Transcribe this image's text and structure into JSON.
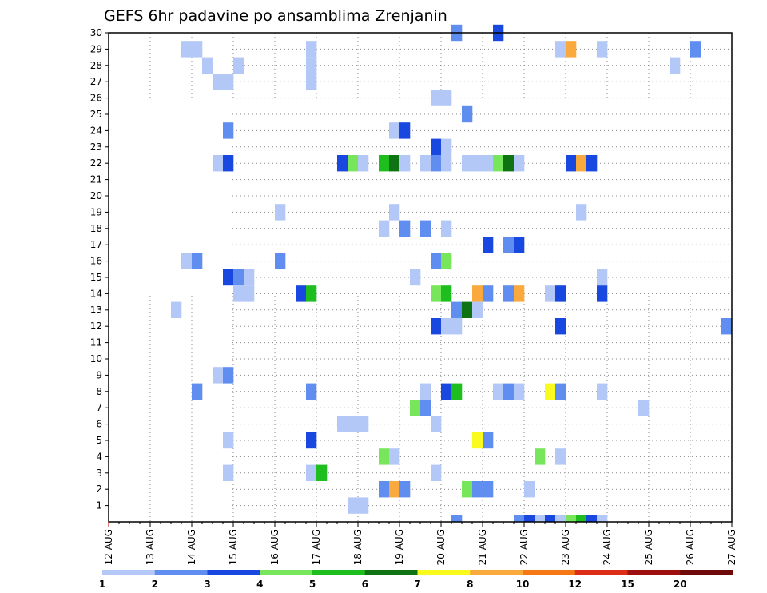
{
  "chart_data": {
    "type": "heatmap",
    "title": "GEFS 6hr padavine po ansamblima Zrenjanin",
    "x_tick_labels": [
      "12 AUG",
      "13 AUG",
      "14 AUG",
      "15 AUG",
      "16 AUG",
      "17 AUG",
      "18 AUG",
      "19 AUG",
      "20 AUG",
      "21 AUG",
      "22 AUG",
      "23 AUG",
      "24 AUG",
      "25 AUG",
      "26 AUG",
      "27 AUG"
    ],
    "y_tick_labels": [
      "1",
      "2",
      "3",
      "4",
      "5",
      "6",
      "7",
      "8",
      "9",
      "10",
      "11",
      "12",
      "13",
      "14",
      "15",
      "16",
      "17",
      "18",
      "19",
      "20",
      "21",
      "22",
      "23",
      "24",
      "25",
      "26",
      "27",
      "28",
      "29",
      "30"
    ],
    "xlim": [
      0,
      60
    ],
    "ylim": [
      0,
      30
    ],
    "x_unit": "6-hour step from 12 AUG",
    "grid": true,
    "colorbar": {
      "labels": [
        "1",
        "2",
        "3",
        "4",
        "5",
        "6",
        "7",
        "8",
        "10",
        "12",
        "15",
        "20"
      ],
      "colors": [
        "#b4c8f8",
        "#5f8ef0",
        "#1948e0",
        "#78e65a",
        "#1ebe1e",
        "#0f7314",
        "#fafa1e",
        "#faaa3c",
        "#f57814",
        "#dc2d19",
        "#a00f0f",
        "#6e0a0a"
      ]
    },
    "cells": [
      {
        "x": 33,
        "y": 30,
        "c": 2
      },
      {
        "x": 37,
        "y": 30,
        "c": 3
      },
      {
        "x": 7,
        "y": 29,
        "c": 1
      },
      {
        "x": 8,
        "y": 29,
        "c": 1
      },
      {
        "x": 19,
        "y": 29,
        "c": 1
      },
      {
        "x": 43,
        "y": 29,
        "c": 1
      },
      {
        "x": 44,
        "y": 29,
        "c": 8
      },
      {
        "x": 47,
        "y": 29,
        "c": 1
      },
      {
        "x": 56,
        "y": 29,
        "c": 2
      },
      {
        "x": 9,
        "y": 28,
        "c": 1
      },
      {
        "x": 12,
        "y": 28,
        "c": 1
      },
      {
        "x": 19,
        "y": 28,
        "c": 1
      },
      {
        "x": 54,
        "y": 28,
        "c": 1
      },
      {
        "x": 10,
        "y": 27,
        "c": 1
      },
      {
        "x": 11,
        "y": 27,
        "c": 1
      },
      {
        "x": 19,
        "y": 27,
        "c": 1
      },
      {
        "x": 31,
        "y": 26,
        "c": 1
      },
      {
        "x": 32,
        "y": 26,
        "c": 1
      },
      {
        "x": 34,
        "y": 25,
        "c": 2
      },
      {
        "x": 11,
        "y": 24,
        "c": 2
      },
      {
        "x": 27,
        "y": 24,
        "c": 1
      },
      {
        "x": 28,
        "y": 24,
        "c": 3
      },
      {
        "x": 31,
        "y": 23,
        "c": 3
      },
      {
        "x": 32,
        "y": 23,
        "c": 1
      },
      {
        "x": 10,
        "y": 22,
        "c": 1
      },
      {
        "x": 11,
        "y": 22,
        "c": 3
      },
      {
        "x": 22,
        "y": 22,
        "c": 3
      },
      {
        "x": 23,
        "y": 22,
        "c": 4
      },
      {
        "x": 24,
        "y": 22,
        "c": 1
      },
      {
        "x": 26,
        "y": 22,
        "c": 5
      },
      {
        "x": 27,
        "y": 22,
        "c": 6
      },
      {
        "x": 28,
        "y": 22,
        "c": 1
      },
      {
        "x": 30,
        "y": 22,
        "c": 1
      },
      {
        "x": 31,
        "y": 22,
        "c": 2
      },
      {
        "x": 32,
        "y": 22,
        "c": 1
      },
      {
        "x": 34,
        "y": 22,
        "c": 1
      },
      {
        "x": 35,
        "y": 22,
        "c": 1
      },
      {
        "x": 36,
        "y": 22,
        "c": 1
      },
      {
        "x": 37,
        "y": 22,
        "c": 4
      },
      {
        "x": 38,
        "y": 22,
        "c": 6
      },
      {
        "x": 39,
        "y": 22,
        "c": 1
      },
      {
        "x": 44,
        "y": 22,
        "c": 3
      },
      {
        "x": 45,
        "y": 22,
        "c": 8
      },
      {
        "x": 46,
        "y": 22,
        "c": 3
      },
      {
        "x": 16,
        "y": 19,
        "c": 1
      },
      {
        "x": 27,
        "y": 19,
        "c": 1
      },
      {
        "x": 45,
        "y": 19,
        "c": 1
      },
      {
        "x": 26,
        "y": 18,
        "c": 1
      },
      {
        "x": 28,
        "y": 18,
        "c": 2
      },
      {
        "x": 30,
        "y": 18,
        "c": 2
      },
      {
        "x": 32,
        "y": 18,
        "c": 1
      },
      {
        "x": 36,
        "y": 17,
        "c": 3
      },
      {
        "x": 38,
        "y": 17,
        "c": 2
      },
      {
        "x": 39,
        "y": 17,
        "c": 3
      },
      {
        "x": 7,
        "y": 16,
        "c": 1
      },
      {
        "x": 8,
        "y": 16,
        "c": 2
      },
      {
        "x": 16,
        "y": 16,
        "c": 2
      },
      {
        "x": 31,
        "y": 16,
        "c": 2
      },
      {
        "x": 32,
        "y": 16,
        "c": 4
      },
      {
        "x": 47,
        "y": 15,
        "c": 1
      },
      {
        "x": 11,
        "y": 15,
        "c": 3
      },
      {
        "x": 12,
        "y": 15,
        "c": 2
      },
      {
        "x": 13,
        "y": 15,
        "c": 1
      },
      {
        "x": 29,
        "y": 15,
        "c": 1
      },
      {
        "x": 12,
        "y": 14,
        "c": 1
      },
      {
        "x": 13,
        "y": 14,
        "c": 1
      },
      {
        "x": 18,
        "y": 14,
        "c": 3
      },
      {
        "x": 19,
        "y": 14,
        "c": 5
      },
      {
        "x": 31,
        "y": 14,
        "c": 4
      },
      {
        "x": 32,
        "y": 14,
        "c": 5
      },
      {
        "x": 35,
        "y": 14,
        "c": 8
      },
      {
        "x": 36,
        "y": 14,
        "c": 2
      },
      {
        "x": 38,
        "y": 14,
        "c": 2
      },
      {
        "x": 39,
        "y": 14,
        "c": 8
      },
      {
        "x": 42,
        "y": 14,
        "c": 1
      },
      {
        "x": 43,
        "y": 14,
        "c": 3
      },
      {
        "x": 47,
        "y": 14,
        "c": 3
      },
      {
        "x": 6,
        "y": 13,
        "c": 1
      },
      {
        "x": 33,
        "y": 13,
        "c": 2
      },
      {
        "x": 34,
        "y": 13,
        "c": 6
      },
      {
        "x": 35,
        "y": 13,
        "c": 1
      },
      {
        "x": 31,
        "y": 12,
        "c": 3
      },
      {
        "x": 32,
        "y": 12,
        "c": 1
      },
      {
        "x": 33,
        "y": 12,
        "c": 1
      },
      {
        "x": 43,
        "y": 12,
        "c": 3
      },
      {
        "x": 59,
        "y": 12,
        "c": 2
      },
      {
        "x": 10,
        "y": 9,
        "c": 1
      },
      {
        "x": 11,
        "y": 9,
        "c": 2
      },
      {
        "x": 8,
        "y": 8,
        "c": 2
      },
      {
        "x": 19,
        "y": 8,
        "c": 2
      },
      {
        "x": 30,
        "y": 8,
        "c": 1
      },
      {
        "x": 32,
        "y": 8,
        "c": 3
      },
      {
        "x": 33,
        "y": 8,
        "c": 5
      },
      {
        "x": 37,
        "y": 8,
        "c": 1
      },
      {
        "x": 38,
        "y": 8,
        "c": 2
      },
      {
        "x": 39,
        "y": 8,
        "c": 1
      },
      {
        "x": 42,
        "y": 8,
        "c": 7
      },
      {
        "x": 43,
        "y": 8,
        "c": 2
      },
      {
        "x": 47,
        "y": 8,
        "c": 1
      },
      {
        "x": 29,
        "y": 7,
        "c": 4
      },
      {
        "x": 30,
        "y": 7,
        "c": 2
      },
      {
        "x": 51,
        "y": 7,
        "c": 1
      },
      {
        "x": 22,
        "y": 6,
        "c": 1
      },
      {
        "x": 23,
        "y": 6,
        "c": 1
      },
      {
        "x": 24,
        "y": 6,
        "c": 1
      },
      {
        "x": 31,
        "y": 6,
        "c": 1
      },
      {
        "x": 11,
        "y": 5,
        "c": 1
      },
      {
        "x": 19,
        "y": 5,
        "c": 3
      },
      {
        "x": 35,
        "y": 5,
        "c": 7
      },
      {
        "x": 36,
        "y": 5,
        "c": 2
      },
      {
        "x": 26,
        "y": 4,
        "c": 4
      },
      {
        "x": 27,
        "y": 4,
        "c": 1
      },
      {
        "x": 41,
        "y": 4,
        "c": 4
      },
      {
        "x": 43,
        "y": 4,
        "c": 1
      },
      {
        "x": 11,
        "y": 3,
        "c": 1
      },
      {
        "x": 19,
        "y": 3,
        "c": 1
      },
      {
        "x": 20,
        "y": 3,
        "c": 5
      },
      {
        "x": 31,
        "y": 3,
        "c": 1
      },
      {
        "x": 26,
        "y": 2,
        "c": 2
      },
      {
        "x": 27,
        "y": 2,
        "c": 8
      },
      {
        "x": 28,
        "y": 2,
        "c": 2
      },
      {
        "x": 34,
        "y": 2,
        "c": 4
      },
      {
        "x": 35,
        "y": 2,
        "c": 2
      },
      {
        "x": 36,
        "y": 2,
        "c": 2
      },
      {
        "x": 40,
        "y": 2,
        "c": 1
      },
      {
        "x": 23,
        "y": 1,
        "c": 1
      },
      {
        "x": 24,
        "y": 1,
        "c": 1
      },
      {
        "x": 33,
        "y": 0,
        "c": 2
      },
      {
        "x": 39,
        "y": 0,
        "c": 2
      },
      {
        "x": 40,
        "y": 0,
        "c": 3
      },
      {
        "x": 41,
        "y": 0,
        "c": 1
      },
      {
        "x": 42,
        "y": 0,
        "c": 3
      },
      {
        "x": 43,
        "y": 0,
        "c": 1
      },
      {
        "x": 44,
        "y": 0,
        "c": 4
      },
      {
        "x": 45,
        "y": 0,
        "c": 5
      },
      {
        "x": 46,
        "y": 0,
        "c": 3
      },
      {
        "x": 47,
        "y": 0,
        "c": 1
      }
    ]
  }
}
